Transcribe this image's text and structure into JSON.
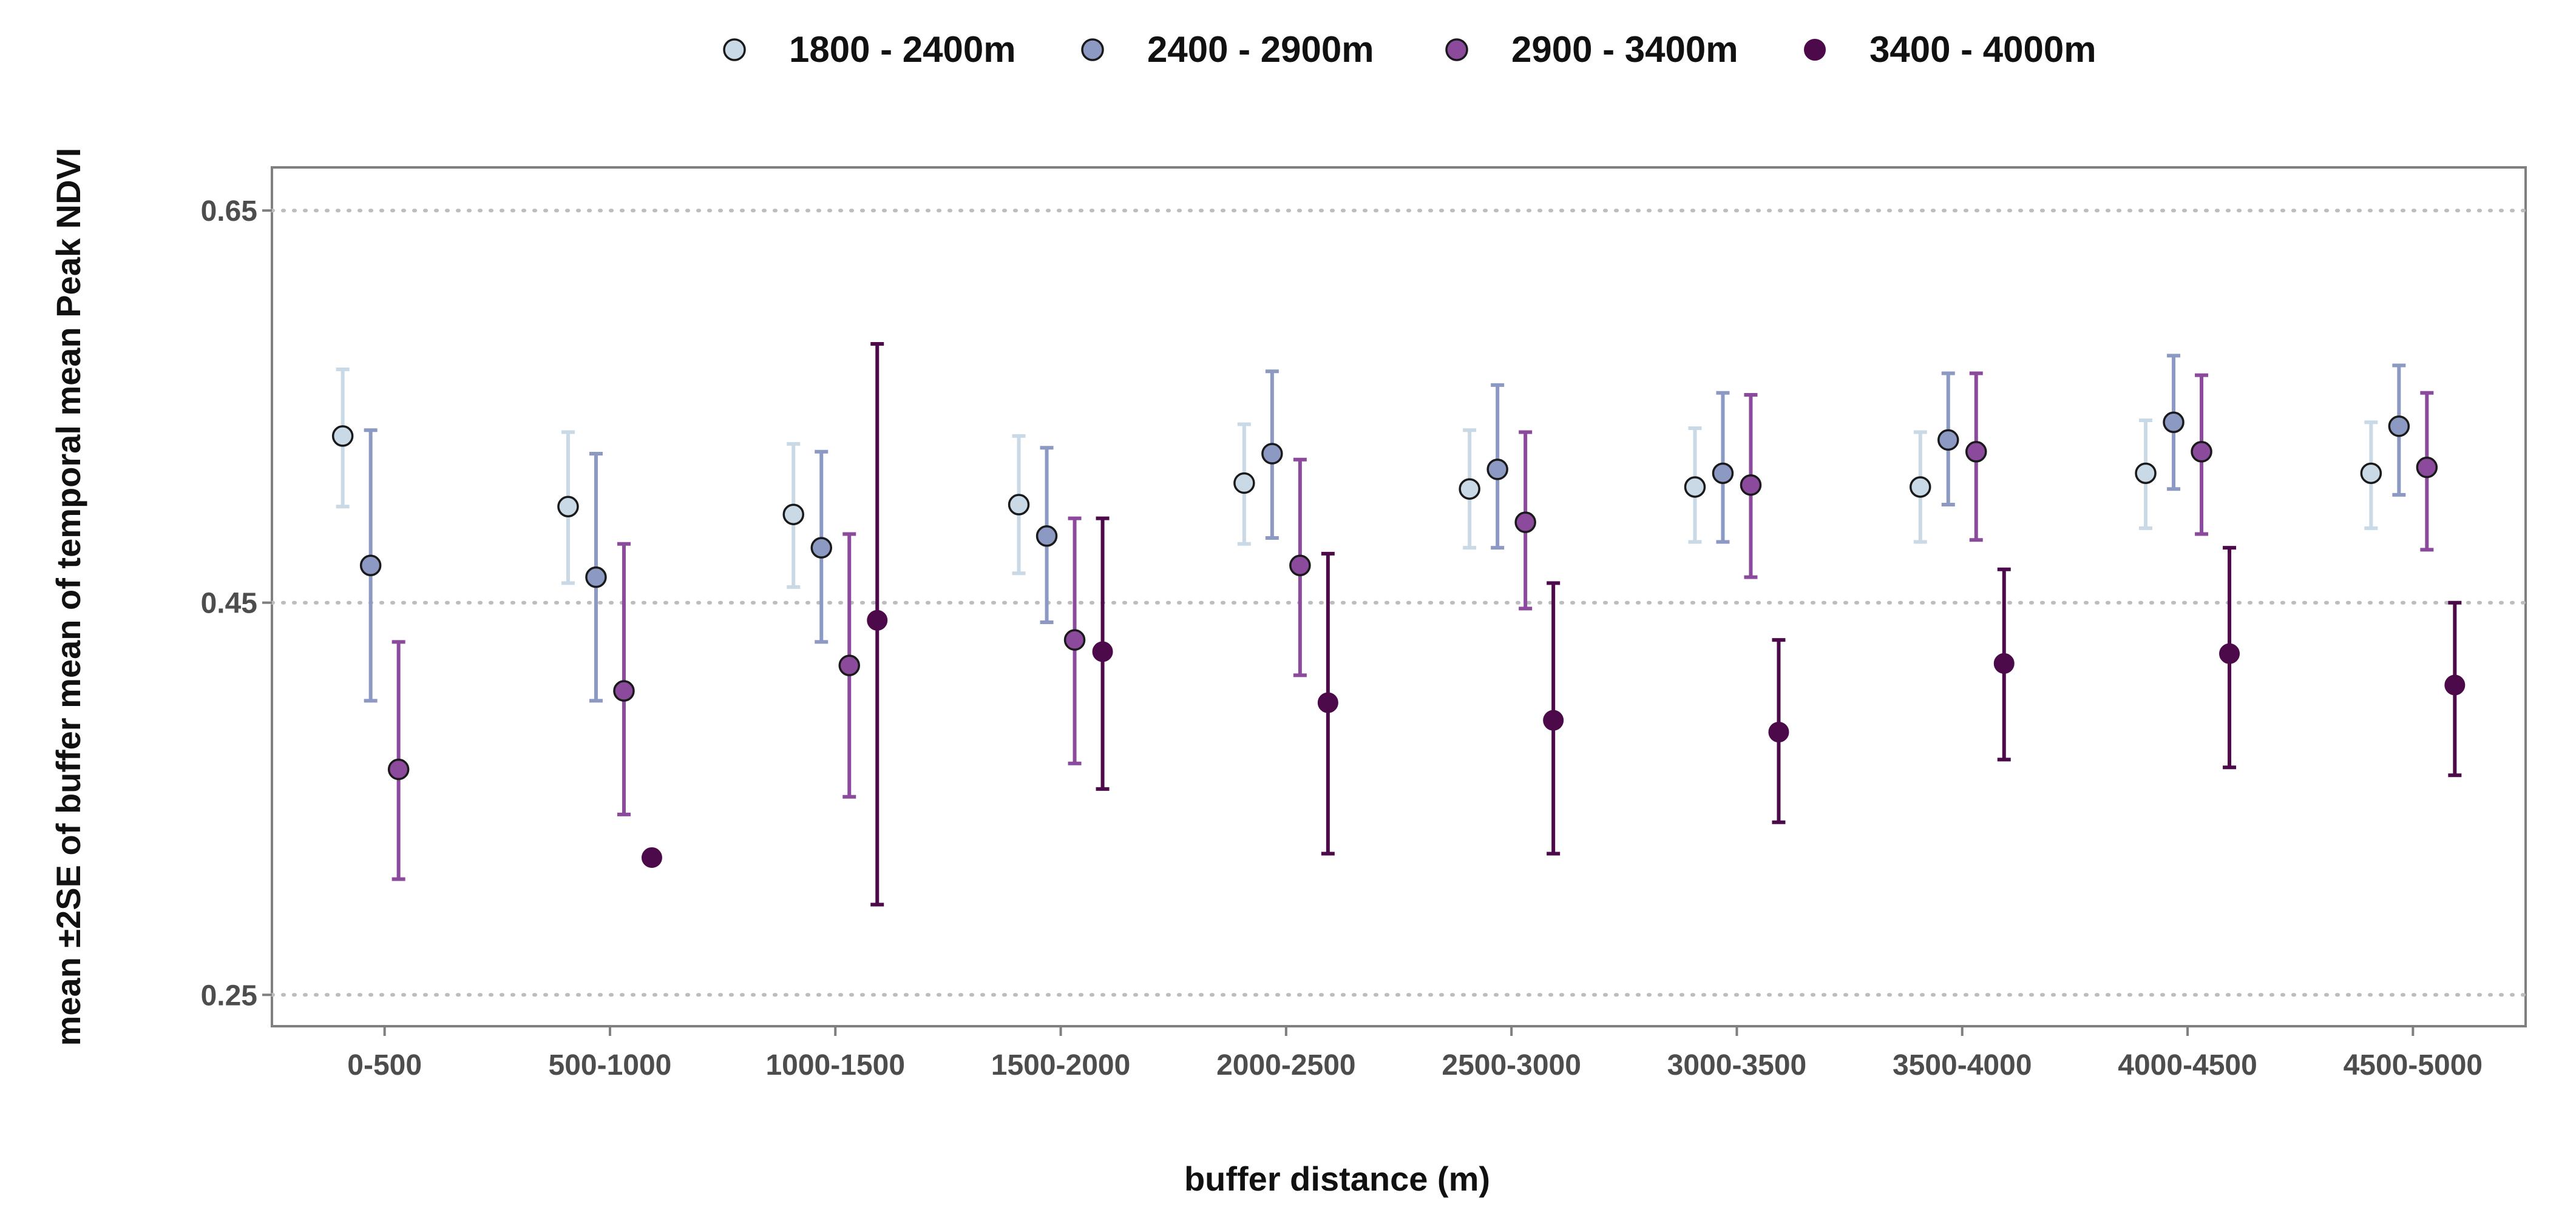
{
  "chart_data": {
    "type": "scatter",
    "subtype": "point-errorbar",
    "title": "",
    "xlabel": "buffer distance (m)",
    "ylabel": "mean ±2SE of buffer mean of temporal mean Peak NDVI",
    "categories": [
      "0-500",
      "500-1000",
      "1000-1500",
      "1500-2000",
      "2000-2500",
      "2500-3000",
      "3000-3500",
      "3500-4000",
      "4000-4500",
      "4500-5000"
    ],
    "ylim": [
      0.234,
      0.672
    ],
    "yticks": [
      0.25,
      0.45,
      0.65
    ],
    "ytick_labels": [
      "0.25",
      "0.45",
      "0.65"
    ],
    "grid": "horizontal dotted at y ticks",
    "legend_position": "top",
    "series": [
      {
        "name": "1800 - 2400m",
        "color": "#c9d9e6",
        "values": [
          0.535,
          0.499,
          0.495,
          0.5,
          0.511,
          0.508,
          0.509,
          0.509,
          0.516,
          0.516
        ],
        "lower": [
          0.499,
          0.46,
          0.458,
          0.465,
          0.48,
          0.478,
          0.481,
          0.481,
          0.488,
          0.488
        ],
        "upper": [
          0.569,
          0.537,
          0.531,
          0.535,
          0.541,
          0.538,
          0.539,
          0.537,
          0.543,
          0.542
        ]
      },
      {
        "name": "2400 - 2900m",
        "color": "#8c99c2",
        "values": [
          0.469,
          0.463,
          0.478,
          0.484,
          0.526,
          0.518,
          0.516,
          0.533,
          0.542,
          0.54
        ],
        "lower": [
          0.4,
          0.4,
          0.43,
          0.44,
          0.483,
          0.478,
          0.481,
          0.5,
          0.508,
          0.505
        ],
        "upper": [
          0.538,
          0.526,
          0.527,
          0.529,
          0.568,
          0.561,
          0.557,
          0.567,
          0.576,
          0.571
        ]
      },
      {
        "name": "2900 - 3400m",
        "color": "#8b4a9c",
        "values": [
          0.365,
          0.405,
          0.418,
          0.431,
          0.469,
          0.491,
          0.51,
          0.527,
          0.527,
          0.519
        ],
        "lower": [
          0.309,
          0.342,
          0.351,
          0.368,
          0.413,
          0.447,
          0.463,
          0.482,
          0.485,
          0.477
        ],
        "upper": [
          0.43,
          0.48,
          0.485,
          0.493,
          0.523,
          0.537,
          0.556,
          0.567,
          0.566,
          0.557
        ]
      },
      {
        "name": "3400 - 4000m",
        "color": "#4d0a4a",
        "values": [
          null,
          0.32,
          0.441,
          0.425,
          0.399,
          0.39,
          0.384,
          0.419,
          0.424,
          0.408
        ],
        "lower": [
          null,
          null,
          0.296,
          0.355,
          0.322,
          0.322,
          0.338,
          0.37,
          0.366,
          0.362
        ],
        "upper": [
          null,
          null,
          0.582,
          0.493,
          0.475,
          0.46,
          0.431,
          0.467,
          0.478,
          0.45
        ]
      }
    ]
  }
}
